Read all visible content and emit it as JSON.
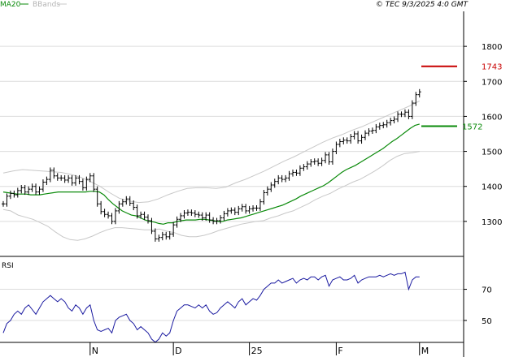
{
  "chart_data": {
    "header": {
      "legend": [
        {
          "label": "MA20",
          "color": "#0a8a0a"
        },
        {
          "label": "BBands",
          "color": "#c8c8c8"
        }
      ],
      "copyright": "© TEC 9/3/2025 4:0 GMT"
    },
    "price_panel": {
      "type": "ohlc",
      "ylim": [
        1200,
        1900
      ],
      "y_ticks": [
        1300,
        1400,
        1500,
        1600,
        1700,
        1800
      ],
      "grid": true,
      "close": [
        1350,
        1372,
        1380,
        1376,
        1388,
        1396,
        1384,
        1392,
        1400,
        1384,
        1392,
        1412,
        1420,
        1446,
        1430,
        1424,
        1424,
        1418,
        1424,
        1410,
        1424,
        1414,
        1396,
        1420,
        1430,
        1392,
        1350,
        1328,
        1320,
        1316,
        1300,
        1330,
        1350,
        1356,
        1364,
        1352,
        1340,
        1316,
        1320,
        1312,
        1302,
        1272,
        1250,
        1254,
        1262,
        1256,
        1264,
        1290,
        1306,
        1316,
        1324,
        1326,
        1324,
        1320,
        1318,
        1310,
        1318,
        1304,
        1300,
        1302,
        1310,
        1322,
        1330,
        1332,
        1326,
        1336,
        1342,
        1330,
        1336,
        1338,
        1338,
        1356,
        1382,
        1392,
        1404,
        1414,
        1424,
        1420,
        1424,
        1436,
        1440,
        1438,
        1452,
        1456,
        1464,
        1470,
        1472,
        1466,
        1474,
        1490,
        1470,
        1500,
        1520,
        1528,
        1532,
        1530,
        1542,
        1550,
        1530,
        1540,
        1552,
        1558,
        1560,
        1570,
        1574,
        1576,
        1582,
        1588,
        1592,
        1606,
        1606,
        1612,
        1600,
        1638,
        1662,
        1670
      ],
      "ma20": [
        1384,
        1382,
        1380,
        1378,
        1378,
        1378,
        1376,
        1376,
        1376,
        1378,
        1380,
        1382,
        1384,
        1384,
        1384,
        1384,
        1384,
        1384,
        1384,
        1386,
        1386,
        1384,
        1376,
        1362,
        1350,
        1340,
        1330,
        1324,
        1318,
        1316,
        1310,
        1304,
        1300,
        1298,
        1294,
        1292,
        1296,
        1296,
        1300,
        1302,
        1304,
        1304,
        1304,
        1306,
        1306,
        1304,
        1302,
        1300,
        1300,
        1304,
        1306,
        1308,
        1310,
        1314,
        1318,
        1322,
        1326,
        1330,
        1334,
        1338,
        1342,
        1346,
        1352,
        1358,
        1364,
        1372,
        1378,
        1384,
        1390,
        1396,
        1402,
        1410,
        1420,
        1430,
        1440,
        1448,
        1454,
        1460,
        1468,
        1476,
        1484,
        1492,
        1500,
        1508,
        1518,
        1528,
        1536,
        1546,
        1556,
        1566,
        1574,
        1578
      ],
      "bb_upper": [
        1438,
        1444,
        1448,
        1446,
        1444,
        1442,
        1440,
        1434,
        1426,
        1414,
        1400,
        1382,
        1366,
        1358,
        1354,
        1356,
        1364,
        1376,
        1386,
        1394,
        1396,
        1396,
        1394,
        1398,
        1410,
        1420,
        1432,
        1444,
        1458,
        1472,
        1484,
        1498,
        1512,
        1526,
        1538,
        1548,
        1560,
        1570,
        1582,
        1594,
        1606,
        1618,
        1630,
        1644
      ],
      "bb_lower": [
        1334,
        1330,
        1318,
        1312,
        1306,
        1296,
        1286,
        1270,
        1256,
        1248,
        1246,
        1250,
        1258,
        1268,
        1276,
        1282,
        1282,
        1280,
        1278,
        1276,
        1276,
        1278,
        1272,
        1268,
        1260,
        1256,
        1256,
        1260,
        1266,
        1274,
        1280,
        1286,
        1292,
        1296,
        1300,
        1302,
        1310,
        1316,
        1324,
        1330,
        1340,
        1350,
        1362,
        1372,
        1380,
        1392,
        1402,
        1412,
        1420,
        1432,
        1444,
        1458,
        1474,
        1486,
        1494,
        1496,
        1500
      ],
      "markers": [
        {
          "label": "1743",
          "value": 1743,
          "color": "#c80000"
        },
        {
          "label": "1572",
          "value": 1572,
          "color": "#0a8a0a"
        }
      ]
    },
    "rsi_panel": {
      "title": "RSI",
      "ylim": [
        38,
        88
      ],
      "y_ticks": [
        {
          "label": "50",
          "value": 50
        },
        {
          "label": "70",
          "value": 70
        }
      ],
      "values": [
        42,
        48,
        50,
        54,
        56,
        54,
        58,
        60,
        57,
        54,
        58,
        62,
        64,
        66,
        64,
        62,
        64,
        62,
        58,
        56,
        60,
        58,
        54,
        58,
        60,
        50,
        44,
        43,
        44,
        45,
        42,
        50,
        52,
        53,
        54,
        50,
        48,
        44,
        46,
        44,
        42,
        38,
        36,
        38,
        42,
        40,
        42,
        50,
        56,
        58,
        60,
        60,
        59,
        58,
        60,
        58,
        60,
        56,
        54,
        55,
        58,
        60,
        62,
        60,
        58,
        62,
        64,
        60,
        62,
        64,
        63,
        66,
        70,
        72,
        74,
        74,
        76,
        74,
        75,
        76,
        77,
        74,
        76,
        77,
        76,
        78,
        78,
        76,
        78,
        79,
        72,
        76,
        77,
        78,
        76,
        76,
        77,
        79,
        74,
        76,
        77,
        78,
        78,
        78,
        79,
        78,
        79,
        80,
        79,
        80,
        80,
        81,
        70,
        76,
        78,
        78
      ],
      "grid": true
    },
    "x_axis": {
      "labels": [
        "N",
        "D",
        "25",
        "F",
        "M"
      ],
      "label_index": [
        24,
        47,
        68,
        92,
        115
      ]
    }
  },
  "colors": {
    "bars": "#000000",
    "ma20": "#0a8a0a",
    "bbands": "#c8c8c8",
    "rsi": "#1a1aa0",
    "grid": "#dcdcdc",
    "axis": "#000000"
  }
}
